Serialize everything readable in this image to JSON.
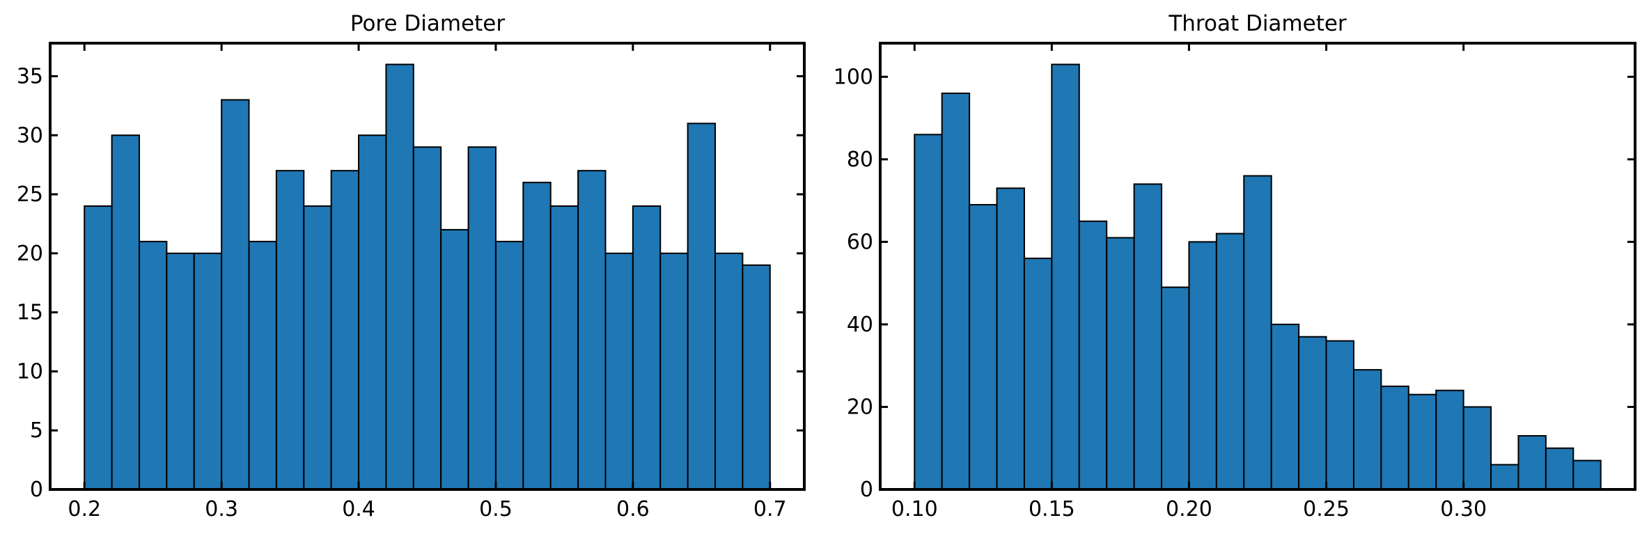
{
  "chart_data": [
    {
      "type": "bar",
      "title": "Pore Diameter",
      "xlabel": "",
      "ylabel": "",
      "bin_width": 0.02,
      "bins": [
        {
          "x0": 0.2,
          "x1": 0.22,
          "count": 24
        },
        {
          "x0": 0.22,
          "x1": 0.24,
          "count": 30
        },
        {
          "x0": 0.24,
          "x1": 0.26,
          "count": 21
        },
        {
          "x0": 0.26,
          "x1": 0.28,
          "count": 20
        },
        {
          "x0": 0.28,
          "x1": 0.3,
          "count": 20
        },
        {
          "x0": 0.3,
          "x1": 0.32,
          "count": 33
        },
        {
          "x0": 0.32,
          "x1": 0.34,
          "count": 21
        },
        {
          "x0": 0.34,
          "x1": 0.36,
          "count": 27
        },
        {
          "x0": 0.36,
          "x1": 0.38,
          "count": 24
        },
        {
          "x0": 0.38,
          "x1": 0.4,
          "count": 27
        },
        {
          "x0": 0.4,
          "x1": 0.42,
          "count": 30
        },
        {
          "x0": 0.42,
          "x1": 0.44,
          "count": 36
        },
        {
          "x0": 0.44,
          "x1": 0.46,
          "count": 29
        },
        {
          "x0": 0.46,
          "x1": 0.48,
          "count": 22
        },
        {
          "x0": 0.48,
          "x1": 0.5,
          "count": 29
        },
        {
          "x0": 0.5,
          "x1": 0.52,
          "count": 21
        },
        {
          "x0": 0.52,
          "x1": 0.54,
          "count": 26
        },
        {
          "x0": 0.54,
          "x1": 0.56,
          "count": 24
        },
        {
          "x0": 0.56,
          "x1": 0.58,
          "count": 27
        },
        {
          "x0": 0.58,
          "x1": 0.6,
          "count": 20
        },
        {
          "x0": 0.6,
          "x1": 0.62,
          "count": 24
        },
        {
          "x0": 0.62,
          "x1": 0.64,
          "count": 20
        },
        {
          "x0": 0.64,
          "x1": 0.66,
          "count": 31
        },
        {
          "x0": 0.66,
          "x1": 0.68,
          "count": 20
        },
        {
          "x0": 0.68,
          "x1": 0.7,
          "count": 19
        }
      ],
      "xlim": [
        0.175,
        0.725
      ],
      "ylim": [
        0,
        37.8
      ],
      "xticks": [
        0.2,
        0.3,
        0.4,
        0.5,
        0.6,
        0.7
      ],
      "xtick_labels": [
        "0.2",
        "0.3",
        "0.4",
        "0.5",
        "0.6",
        "0.7"
      ],
      "yticks": [
        0,
        5,
        10,
        15,
        20,
        25,
        30,
        35
      ],
      "ytick_labels": [
        "0",
        "5",
        "10",
        "15",
        "20",
        "25",
        "30",
        "35"
      ],
      "bar_color": "#1f77b4",
      "edge_color": "#000000",
      "grid": false
    },
    {
      "type": "bar",
      "title": "Throat Diameter",
      "xlabel": "",
      "ylabel": "",
      "bin_width": 0.01,
      "bins": [
        {
          "x0": 0.1,
          "x1": 0.11,
          "count": 86
        },
        {
          "x0": 0.11,
          "x1": 0.12,
          "count": 96
        },
        {
          "x0": 0.12,
          "x1": 0.13,
          "count": 69
        },
        {
          "x0": 0.13,
          "x1": 0.14,
          "count": 73
        },
        {
          "x0": 0.14,
          "x1": 0.15,
          "count": 56
        },
        {
          "x0": 0.15,
          "x1": 0.16,
          "count": 103
        },
        {
          "x0": 0.16,
          "x1": 0.17,
          "count": 65
        },
        {
          "x0": 0.17,
          "x1": 0.18,
          "count": 61
        },
        {
          "x0": 0.18,
          "x1": 0.19,
          "count": 74
        },
        {
          "x0": 0.19,
          "x1": 0.2,
          "count": 49
        },
        {
          "x0": 0.2,
          "x1": 0.21,
          "count": 60
        },
        {
          "x0": 0.21,
          "x1": 0.22,
          "count": 62
        },
        {
          "x0": 0.22,
          "x1": 0.23,
          "count": 76
        },
        {
          "x0": 0.23,
          "x1": 0.24,
          "count": 40
        },
        {
          "x0": 0.24,
          "x1": 0.25,
          "count": 37
        },
        {
          "x0": 0.25,
          "x1": 0.26,
          "count": 36
        },
        {
          "x0": 0.26,
          "x1": 0.27,
          "count": 29
        },
        {
          "x0": 0.27,
          "x1": 0.28,
          "count": 25
        },
        {
          "x0": 0.28,
          "x1": 0.29,
          "count": 23
        },
        {
          "x0": 0.29,
          "x1": 0.3,
          "count": 24
        },
        {
          "x0": 0.3,
          "x1": 0.31,
          "count": 20
        },
        {
          "x0": 0.31,
          "x1": 0.32,
          "count": 6
        },
        {
          "x0": 0.32,
          "x1": 0.33,
          "count": 13
        },
        {
          "x0": 0.33,
          "x1": 0.34,
          "count": 10
        },
        {
          "x0": 0.34,
          "x1": 0.35,
          "count": 7
        }
      ],
      "xlim": [
        0.0875,
        0.3625
      ],
      "ylim": [
        0,
        108.15
      ],
      "xticks": [
        0.1,
        0.15,
        0.2,
        0.25,
        0.3
      ],
      "xtick_labels": [
        "0.10",
        "0.15",
        "0.20",
        "0.25",
        "0.30"
      ],
      "yticks": [
        0,
        20,
        40,
        60,
        80,
        100
      ],
      "ytick_labels": [
        "0",
        "20",
        "40",
        "60",
        "80",
        "100"
      ],
      "bar_color": "#1f77b4",
      "edge_color": "#000000",
      "grid": false
    }
  ]
}
